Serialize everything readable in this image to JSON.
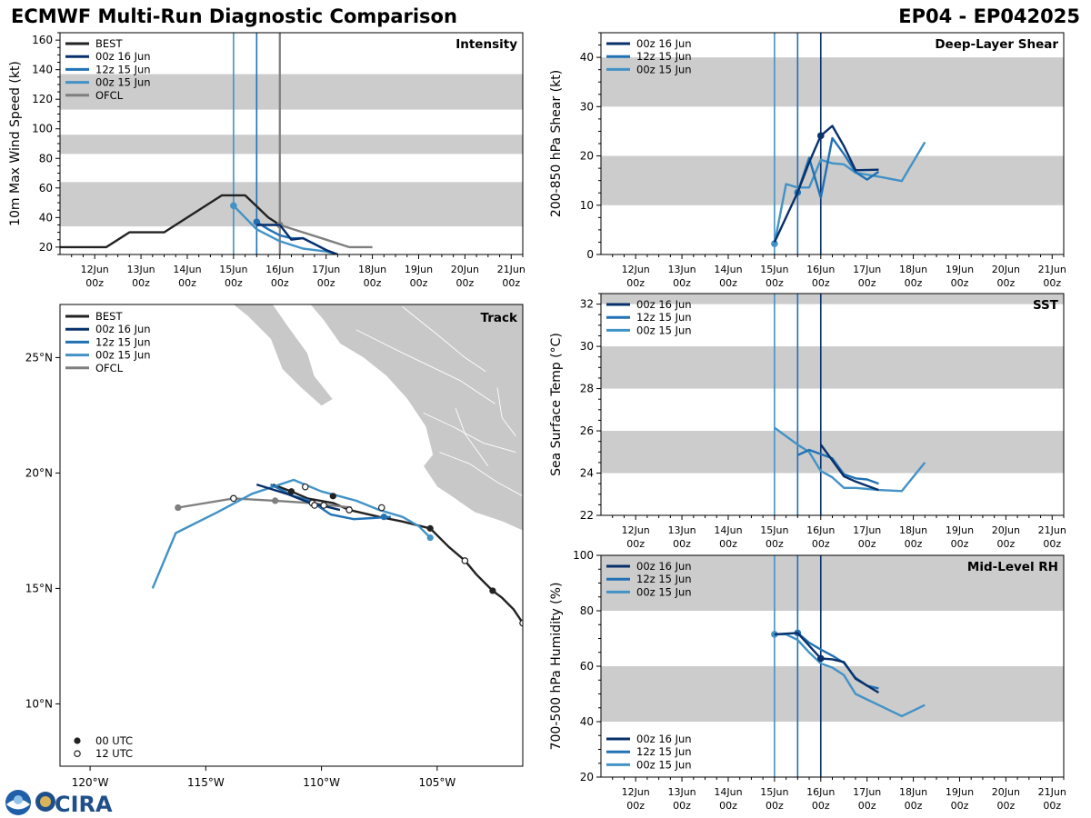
{
  "header": {
    "title_left": "ECMWF Multi-Run Diagnostic Comparison",
    "title_right": "EP04 - EP042025"
  },
  "logo": {
    "text": "CIRA",
    "icon": "noaa-logo-icon"
  },
  "colors": {
    "best": "#222222",
    "run16": "#08306b",
    "run12": "#2171b5",
    "run00": "#4292c6",
    "ofcl": "#7f7f7f",
    "band": "#cccccc",
    "land": "#c8c8c8"
  },
  "time_axis": {
    "ticks": [
      "12Jun\n00z",
      "13Jun\n00z",
      "14Jun\n00z",
      "15Jun\n00z",
      "16Jun\n00z",
      "17Jun\n00z",
      "18Jun\n00z",
      "19Jun\n00z",
      "20Jun\n00z",
      "21Jun\n00z"
    ],
    "tick_values": [
      12,
      13,
      14,
      15,
      16,
      17,
      18,
      19,
      20,
      21
    ],
    "range": [
      11.25,
      21.25
    ],
    "init_lines": [
      {
        "t": 15.0,
        "run": "run00"
      },
      {
        "t": 15.5,
        "run": "run12"
      },
      {
        "t": 16.0,
        "run": "run16"
      }
    ]
  },
  "chart_data": [
    {
      "id": "intensity",
      "type": "line",
      "title": "Intensity",
      "ylabel": "10m Max Wind Speed (kt)",
      "ylim": [
        15,
        165
      ],
      "yticks": [
        20,
        40,
        60,
        80,
        100,
        120,
        140,
        160
      ],
      "bands": [
        [
          34,
          64
        ],
        [
          83,
          96
        ],
        [
          113,
          137
        ]
      ],
      "legend": [
        "BEST",
        "00z 16 Jun",
        "12z 15 Jun",
        "00z 15 Jun",
        "OFCL"
      ],
      "series": [
        {
          "name": "BEST",
          "key": "best",
          "t": [
            11.25,
            12.25,
            12.75,
            13.5,
            14.75,
            15.25,
            15.75,
            16.0
          ],
          "v": [
            20,
            20,
            30,
            30,
            55,
            55,
            40,
            35
          ]
        },
        {
          "name": "OFCL",
          "key": "ofcl",
          "t": [
            16.0,
            16.5,
            17.0,
            17.5,
            18.0
          ],
          "v": [
            35,
            30,
            25,
            20,
            20
          ],
          "marker": [
            0
          ]
        },
        {
          "name": "00z 15 Jun",
          "key": "run00",
          "t": [
            15.0,
            15.25,
            15.5,
            16.0,
            16.5,
            17.0,
            17.25
          ],
          "v": [
            48,
            40,
            32,
            24,
            19,
            17,
            15
          ],
          "marker": [
            0
          ]
        },
        {
          "name": "12z 15 Jun",
          "key": "run12",
          "t": [
            15.5,
            15.75,
            16.0,
            16.25,
            16.5,
            16.75,
            17.0,
            17.25
          ],
          "v": [
            37,
            32,
            28,
            26,
            26,
            22,
            18,
            15
          ],
          "marker": [
            0
          ]
        },
        {
          "name": "00z 16 Jun",
          "key": "run16",
          "t": [
            15.5,
            16.0,
            16.25,
            16.5,
            16.75,
            17.0,
            17.25
          ],
          "v": [
            35,
            35,
            25,
            26,
            22,
            18,
            15
          ]
        }
      ]
    },
    {
      "id": "shear",
      "type": "line",
      "title": "Deep-Layer Shear",
      "ylabel": "200-850 hPa Shear (kt)",
      "ylim": [
        0,
        45
      ],
      "yticks": [
        0,
        10,
        20,
        30,
        40
      ],
      "bands": [
        [
          10,
          20
        ],
        [
          30,
          40
        ]
      ],
      "legend": [
        "00z 16 Jun",
        "12z 15 Jun",
        "00z 15 Jun"
      ],
      "series": [
        {
          "name": "00z 15 Jun",
          "key": "run00",
          "t": [
            15.0,
            15.25,
            15.5,
            15.75,
            16.0,
            16.25,
            16.5,
            16.75,
            17.25,
            17.75,
            18.25
          ],
          "v": [
            2.2,
            14.3,
            13.6,
            13.6,
            19.2,
            18.5,
            18.3,
            16.6,
            15.8,
            14.9,
            22.8
          ],
          "marker": [
            0
          ]
        },
        {
          "name": "12z 15 Jun",
          "key": "run12",
          "t": [
            15.5,
            15.75,
            16.0,
            16.25,
            16.5,
            16.75,
            17.0,
            17.25
          ],
          "v": [
            12.6,
            19.6,
            11.5,
            23.6,
            20.4,
            16.7,
            15.2,
            16.8
          ],
          "marker": [
            0
          ]
        },
        {
          "name": "00z 16 Jun",
          "key": "run16",
          "t": [
            15.0,
            15.5,
            15.75,
            16.0,
            16.25,
            16.5,
            16.75,
            17.25
          ],
          "v": [
            2.5,
            12.6,
            18.7,
            24.1,
            26.1,
            22.0,
            17.1,
            17.2
          ],
          "marker": [
            3
          ]
        }
      ]
    },
    {
      "id": "sst",
      "type": "line",
      "title": "SST",
      "ylabel": "Sea Surface Temp (°C)",
      "ylim": [
        22,
        32.5
      ],
      "yticks": [
        22,
        24,
        26,
        28,
        30,
        32
      ],
      "bands": [
        [
          24,
          26
        ],
        [
          28,
          30
        ],
        [
          32,
          34
        ]
      ],
      "legend": [
        "00z 16 Jun",
        "12z 15 Jun",
        "00z 15 Jun"
      ],
      "series": [
        {
          "name": "00z 15 Jun",
          "key": "run00",
          "t": [
            15.0,
            15.5,
            15.75,
            16.0,
            16.25,
            16.5,
            16.75,
            17.25,
            17.75,
            18.25
          ],
          "v": [
            26.15,
            25.35,
            25.0,
            24.1,
            23.8,
            23.3,
            23.3,
            23.2,
            23.15,
            24.5
          ]
        },
        {
          "name": "12z 15 Jun",
          "key": "run12",
          "t": [
            15.5,
            15.75,
            16.0,
            16.25,
            16.5,
            16.75,
            17.0,
            17.25
          ],
          "v": [
            24.85,
            25.1,
            24.9,
            24.7,
            23.95,
            23.75,
            23.7,
            23.5
          ]
        },
        {
          "name": "00z 16 Jun",
          "key": "run16",
          "t": [
            16.0,
            16.25,
            16.5,
            16.75,
            17.0,
            17.25
          ],
          "v": [
            25.35,
            24.6,
            23.85,
            23.6,
            23.4,
            23.2
          ]
        }
      ]
    },
    {
      "id": "rh",
      "type": "line",
      "title": "Mid-Level RH",
      "ylabel": "700-500 hPa Humidity (%)",
      "ylim": [
        20,
        100
      ],
      "yticks": [
        20,
        40,
        60,
        80,
        100
      ],
      "bands": [
        [
          40,
          60
        ],
        [
          80,
          100
        ]
      ],
      "legend": [
        "00z 16 Jun",
        "12z 15 Jun",
        "00z 15 Jun"
      ],
      "series": [
        {
          "name": "00z 15 Jun",
          "key": "run00",
          "t": [
            15.0,
            15.25,
            15.5,
            15.75,
            16.0,
            16.25,
            16.5,
            16.75,
            17.25,
            17.75,
            18.25
          ],
          "v": [
            71.5,
            71.5,
            69.5,
            65.0,
            61.0,
            59.5,
            56.8,
            50.0,
            46.0,
            42.0,
            46.0
          ],
          "marker": [
            0
          ]
        },
        {
          "name": "12z 15 Jun",
          "key": "run12",
          "t": [
            15.5,
            15.75,
            16.0,
            16.25,
            16.5,
            16.75,
            17.0,
            17.25
          ],
          "v": [
            72.0,
            68.5,
            66.0,
            63.8,
            61.2,
            55.8,
            53.0,
            52.0
          ],
          "marker": [
            0
          ]
        },
        {
          "name": "00z 16 Jun",
          "key": "run16",
          "t": [
            15.0,
            15.5,
            16.0,
            16.25,
            16.5,
            16.75,
            17.0,
            17.25
          ],
          "v": [
            71.5,
            72.0,
            62.8,
            62.5,
            61.5,
            55.5,
            53.0,
            50.5
          ],
          "marker": [
            2
          ]
        }
      ]
    },
    {
      "id": "track",
      "type": "scatter",
      "title": "Track",
      "lon_range": [
        -121.3,
        -101.3
      ],
      "lat_range": [
        7.3,
        27.3
      ],
      "xticks": [
        {
          "v": -120,
          "label": "120°W"
        },
        {
          "v": -115,
          "label": "115°W"
        },
        {
          "v": -110,
          "label": "110°W"
        },
        {
          "v": -105,
          "label": "105°W"
        }
      ],
      "yticks": [
        {
          "v": 10,
          "label": "10°N"
        },
        {
          "v": 15,
          "label": "15°N"
        },
        {
          "v": 20,
          "label": "20°N"
        },
        {
          "v": 25,
          "label": "25°N"
        }
      ],
      "legend": [
        "BEST",
        "00z 16 Jun",
        "12z 15 Jun",
        "00z 15 Jun",
        "OFCL"
      ],
      "marker_legend": [
        "00 UTC",
        "12 UTC"
      ],
      "tracks": [
        {
          "name": "BEST",
          "key": "best",
          "lon": [
            -101.3,
            -101.7,
            -102.2,
            -102.6,
            -103.3,
            -103.8,
            -104.5,
            -105.3,
            -106.5,
            -107.5,
            -108.8,
            -109.5,
            -110.6,
            -111.3,
            -112.1
          ],
          "lat": [
            13.5,
            14.1,
            14.6,
            14.9,
            15.6,
            16.2,
            16.8,
            17.6,
            17.9,
            18.1,
            18.4,
            18.7,
            18.9,
            19.2,
            19.5
          ],
          "m00": [
            [
              -105.3,
              17.6
            ],
            [
              -108.8,
              18.4
            ],
            [
              -111.3,
              19.2
            ],
            [
              -102.6,
              14.9
            ],
            [
              -109.5,
              19.0
            ]
          ],
          "m12": [
            [
              -101.3,
              13.5
            ],
            [
              -103.8,
              16.2
            ],
            [
              -110.7,
              19.4
            ],
            [
              -108.8,
              18.4
            ]
          ]
        },
        {
          "name": "OFCL",
          "key": "ofcl",
          "lon": [
            -116.2,
            -113.8,
            -112.0,
            -110.5,
            -108.7
          ],
          "lat": [
            18.5,
            18.9,
            18.8,
            18.7,
            18.5
          ],
          "m00": [
            [
              -116.2,
              18.5
            ],
            [
              -112.0,
              18.8
            ]
          ],
          "m12": [
            [
              -113.8,
              18.9
            ],
            [
              -110.4,
              18.7
            ]
          ]
        },
        {
          "name": "00z 15 Jun",
          "key": "run00",
          "lon": [
            -117.3,
            -116.3,
            -114.5,
            -113.0,
            -111.2,
            -110.0,
            -108.5,
            -107.5,
            -106.5,
            -105.8,
            -105.3
          ],
          "lat": [
            15.0,
            17.4,
            18.3,
            19.1,
            19.7,
            19.2,
            18.8,
            18.4,
            18.1,
            17.7,
            17.2
          ],
          "m00": [
            [
              -105.3,
              17.2
            ]
          ],
          "m12": [
            [
              -107.4,
              18.5
            ]
          ]
        },
        {
          "name": "12z 15 Jun",
          "key": "run12",
          "lon": [
            -112.2,
            -111.2,
            -110.5,
            -109.6,
            -108.6,
            -107.8,
            -107.0
          ],
          "lat": [
            19.5,
            19.0,
            18.8,
            18.2,
            18.0,
            18.05,
            18.1
          ],
          "m00": [
            [
              -107.3,
              18.1
            ]
          ],
          "m12": [
            [
              -110.3,
              18.6
            ]
          ]
        },
        {
          "name": "00z 16 Jun",
          "key": "run16",
          "lon": [
            -112.8,
            -111.5,
            -110.5,
            -109.8,
            -109.2
          ],
          "lat": [
            19.5,
            19.1,
            18.7,
            18.55,
            18.4
          ],
          "m00": [],
          "m12": [
            [
              -109.9,
              18.6
            ]
          ]
        }
      ]
    }
  ]
}
